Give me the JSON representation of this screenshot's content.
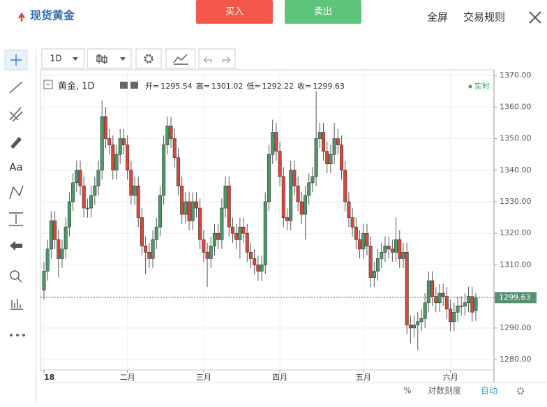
{
  "header": {
    "title": "现货黄金",
    "buy": "买入",
    "sell": "卖出",
    "fullscreen": "全屏",
    "rules": "交易规则"
  },
  "toolbar": {
    "interval": "1D",
    "text_tool": "Aa"
  },
  "legend": {
    "symbol": "黄金, 1D",
    "open": "开=",
    "high": "高=",
    "low": "低=",
    "close": "收=",
    "status": "实时"
  },
  "bottom": {
    "percent": "%",
    "log": "对数刻度",
    "auto": "自动"
  },
  "chart_data": {
    "type": "candlestick",
    "up_color": "#4a9a6a",
    "down_color": "#d9473a",
    "grid": true,
    "categories": [
      "18",
      null,
      null,
      null,
      null,
      null,
      null,
      null,
      null,
      null,
      null,
      null,
      null,
      null,
      null,
      null,
      null,
      null,
      null,
      null,
      null,
      null,
      null,
      "二月",
      null,
      null,
      null,
      null,
      null,
      null,
      null,
      null,
      null,
      null,
      null,
      null,
      null,
      null,
      null,
      null,
      null,
      null,
      null,
      null,
      "三月",
      null,
      null,
      null,
      null,
      null,
      null,
      null,
      null,
      null,
      null,
      null,
      null,
      null,
      null,
      null,
      null,
      null,
      null,
      null,
      null,
      "四月",
      null,
      null,
      null,
      null,
      null,
      null,
      null,
      null,
      null,
      null,
      null,
      null,
      null,
      null,
      null,
      null,
      null,
      null,
      null,
      null,
      null,
      null,
      "五月",
      null,
      null,
      null,
      null,
      null,
      null,
      null,
      null,
      null,
      null,
      null,
      null,
      null,
      null,
      null,
      null,
      null,
      null,
      null,
      null,
      null,
      null,
      null,
      "六月",
      null,
      null,
      null,
      null,
      null,
      null,
      null
    ],
    "open": [
      1302,
      1308,
      1315,
      1324,
      1318,
      1312,
      1315,
      1322,
      1330,
      1336,
      1340,
      1335,
      1328,
      1328,
      1332,
      1335,
      1340,
      1357,
      1350,
      1348,
      1340,
      1345,
      1350,
      1348,
      1340,
      1332,
      1335,
      1325,
      1316,
      1314,
      1312,
      1318,
      1322,
      1332,
      1348,
      1354,
      1350,
      1344,
      1335,
      1326,
      1330,
      1324,
      1330,
      1328,
      1318,
      1314,
      1312,
      1316,
      1320,
      1318,
      1328,
      1335,
      1322,
      1320,
      1318,
      1322,
      1320,
      1314,
      1312,
      1310,
      1308,
      1310,
      1330,
      1345,
      1352,
      1346,
      1338,
      1325,
      1324,
      1340,
      1335,
      1330,
      1326,
      1332,
      1336,
      1338,
      1350,
      1352,
      1346,
      1342,
      1345,
      1350,
      1348,
      1340,
      1330,
      1325,
      1322,
      1318,
      1315,
      1320,
      1316,
      1306,
      1308,
      1312,
      1314,
      1316,
      1315,
      1314,
      1318,
      1312,
      1314,
      1291,
      1290,
      1291,
      1292,
      1293,
      1298,
      1305,
      1300,
      1298,
      1301,
      1300,
      1296,
      1292,
      1295,
      1297,
      1297,
      1298,
      1300,
      1295.54
    ],
    "high": [
      1311,
      1318,
      1327,
      1327,
      1321,
      1318,
      1325,
      1333,
      1339,
      1343,
      1343,
      1338,
      1331,
      1335,
      1338,
      1343,
      1362,
      1360,
      1353,
      1351,
      1348,
      1353,
      1353,
      1351,
      1343,
      1338,
      1338,
      1328,
      1319,
      1317,
      1321,
      1325,
      1335,
      1351,
      1357,
      1357,
      1353,
      1347,
      1338,
      1333,
      1333,
      1333,
      1333,
      1331,
      1321,
      1317,
      1319,
      1323,
      1323,
      1331,
      1338,
      1338,
      1325,
      1323,
      1325,
      1325,
      1323,
      1317,
      1315,
      1313,
      1313,
      1333,
      1348,
      1356,
      1355,
      1349,
      1341,
      1328,
      1343,
      1343,
      1338,
      1333,
      1335,
      1339,
      1341,
      1365,
      1355,
      1355,
      1349,
      1348,
      1355,
      1353,
      1351,
      1343,
      1333,
      1328,
      1325,
      1321,
      1323,
      1323,
      1319,
      1311,
      1315,
      1317,
      1319,
      1319,
      1318,
      1325,
      1321,
      1317,
      1317,
      1294,
      1294,
      1295,
      1296,
      1301,
      1308,
      1308,
      1303,
      1304,
      1304,
      1303,
      1299,
      1298,
      1300,
      1300,
      1301,
      1303,
      1303,
      1301.02
    ],
    "low": [
      1299,
      1305,
      1312,
      1315,
      1306,
      1309,
      1312,
      1319,
      1327,
      1333,
      1332,
      1325,
      1325,
      1325,
      1329,
      1332,
      1337,
      1347,
      1345,
      1337,
      1337,
      1342,
      1345,
      1337,
      1329,
      1329,
      1322,
      1313,
      1307,
      1309,
      1309,
      1315,
      1319,
      1329,
      1345,
      1347,
      1341,
      1332,
      1323,
      1323,
      1321,
      1321,
      1325,
      1315,
      1311,
      1303,
      1309,
      1313,
      1315,
      1315,
      1325,
      1319,
      1317,
      1315,
      1312,
      1317,
      1311,
      1309,
      1307,
      1305,
      1305,
      1307,
      1327,
      1342,
      1343,
      1335,
      1322,
      1321,
      1321,
      1332,
      1327,
      1323,
      1318,
      1329,
      1333,
      1335,
      1347,
      1343,
      1339,
      1339,
      1342,
      1345,
      1337,
      1327,
      1322,
      1319,
      1315,
      1312,
      1312,
      1313,
      1303,
      1303,
      1305,
      1309,
      1311,
      1312,
      1311,
      1311,
      1309,
      1309,
      1288,
      1285,
      1287,
      1283,
      1289,
      1290,
      1295,
      1297,
      1295,
      1295,
      1297,
      1293,
      1289,
      1289,
      1292,
      1294,
      1294,
      1295,
      1292,
      1292.22
    ],
    "close": [
      1308,
      1315,
      1324,
      1318,
      1312,
      1315,
      1322,
      1330,
      1336,
      1340,
      1335,
      1328,
      1328,
      1332,
      1335,
      1340,
      1357,
      1350,
      1348,
      1340,
      1345,
      1350,
      1348,
      1340,
      1332,
      1335,
      1325,
      1316,
      1314,
      1312,
      1318,
      1322,
      1332,
      1348,
      1354,
      1350,
      1344,
      1335,
      1326,
      1330,
      1324,
      1330,
      1328,
      1318,
      1314,
      1312,
      1316,
      1320,
      1318,
      1328,
      1335,
      1322,
      1320,
      1318,
      1322,
      1320,
      1314,
      1312,
      1310,
      1308,
      1310,
      1330,
      1345,
      1352,
      1346,
      1338,
      1325,
      1324,
      1340,
      1335,
      1330,
      1326,
      1332,
      1336,
      1338,
      1350,
      1352,
      1346,
      1342,
      1345,
      1350,
      1348,
      1340,
      1330,
      1325,
      1322,
      1318,
      1315,
      1320,
      1316,
      1306,
      1308,
      1312,
      1314,
      1316,
      1315,
      1314,
      1318,
      1312,
      1314,
      1291,
      1290,
      1291,
      1292,
      1293,
      1298,
      1305,
      1300,
      1298,
      1301,
      1300,
      1296,
      1292,
      1295,
      1297,
      1297,
      1298,
      1300,
      1295,
      1299.63
    ],
    "ylim": [
      1276.7,
      1371.8
    ],
    "yticks": [
      {
        "value": 1280,
        "label": "1280.00"
      },
      {
        "value": 1290,
        "label": "1290.00"
      },
      {
        "value": 1300,
        "label": "1300.00"
      },
      {
        "value": 1310,
        "label": "1310.00"
      },
      {
        "value": 1320,
        "label": "1320.00"
      },
      {
        "value": 1330,
        "label": "1330.00"
      },
      {
        "value": 1340,
        "label": "1340.00"
      },
      {
        "value": 1350,
        "label": "1350.00"
      },
      {
        "value": 1360,
        "label": "1360.00"
      },
      {
        "value": 1370,
        "label": "1370.00"
      }
    ]
  }
}
